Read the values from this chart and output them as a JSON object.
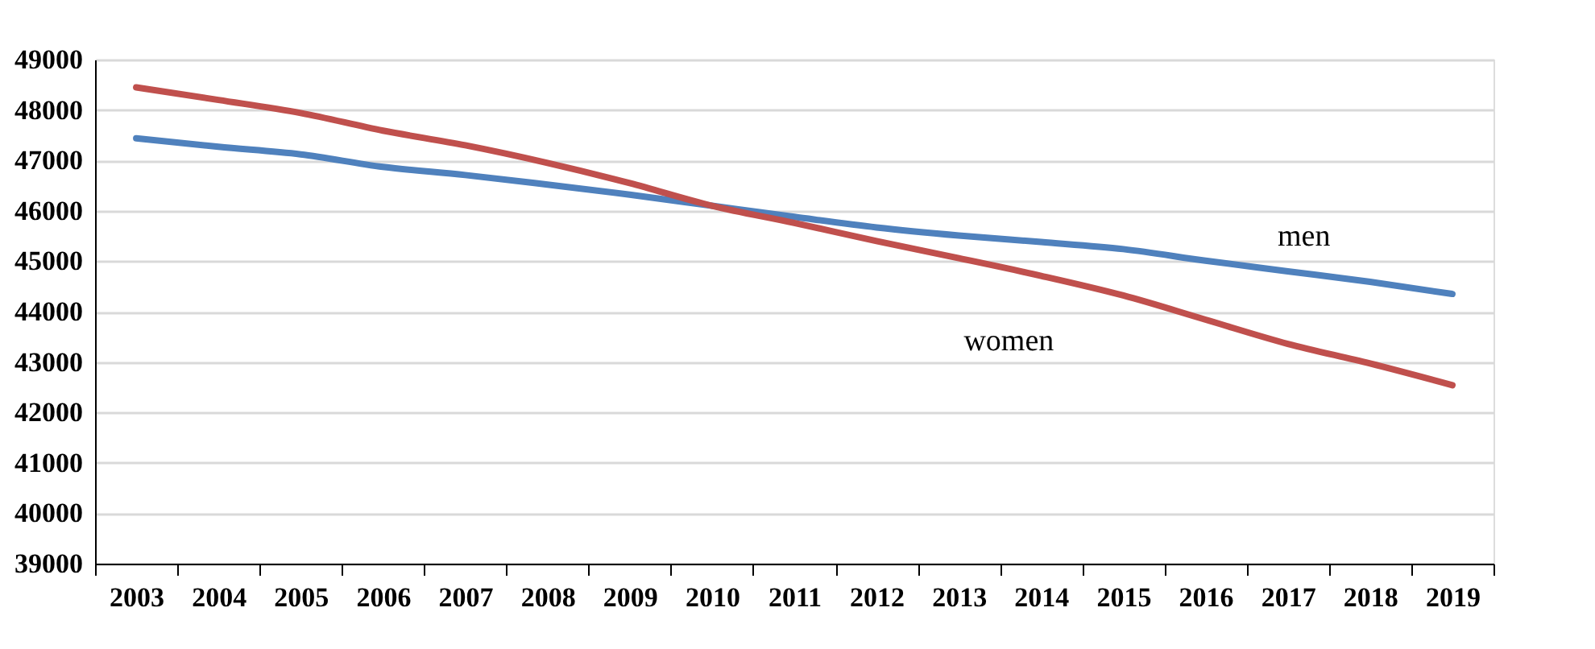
{
  "chart_data": {
    "type": "line",
    "categories": [
      "2003",
      "2004",
      "2005",
      "2006",
      "2007",
      "2008",
      "2009",
      "2010",
      "2011",
      "2012",
      "2013",
      "2014",
      "2015",
      "2016",
      "2017",
      "2018",
      "2019"
    ],
    "series": [
      {
        "name": "men",
        "color": "#4f81bd",
        "values": [
          47440,
          47270,
          47120,
          46870,
          46710,
          46520,
          46320,
          46100,
          45880,
          45670,
          45510,
          45380,
          45240,
          45010,
          44800,
          44590,
          44350
        ]
      },
      {
        "name": "women",
        "color": "#c0504d",
        "values": [
          48450,
          48200,
          47940,
          47590,
          47300,
          46950,
          46550,
          46100,
          45760,
          45400,
          45060,
          44710,
          44320,
          43840,
          43360,
          42970,
          42540
        ]
      }
    ],
    "ylim": [
      39000,
      49000
    ],
    "yticks": [
      39000,
      40000,
      41000,
      42000,
      43000,
      44000,
      45000,
      46000,
      47000,
      48000,
      49000
    ],
    "grid": "y",
    "legend": false,
    "marker": "none",
    "line_style": "solid"
  }
}
